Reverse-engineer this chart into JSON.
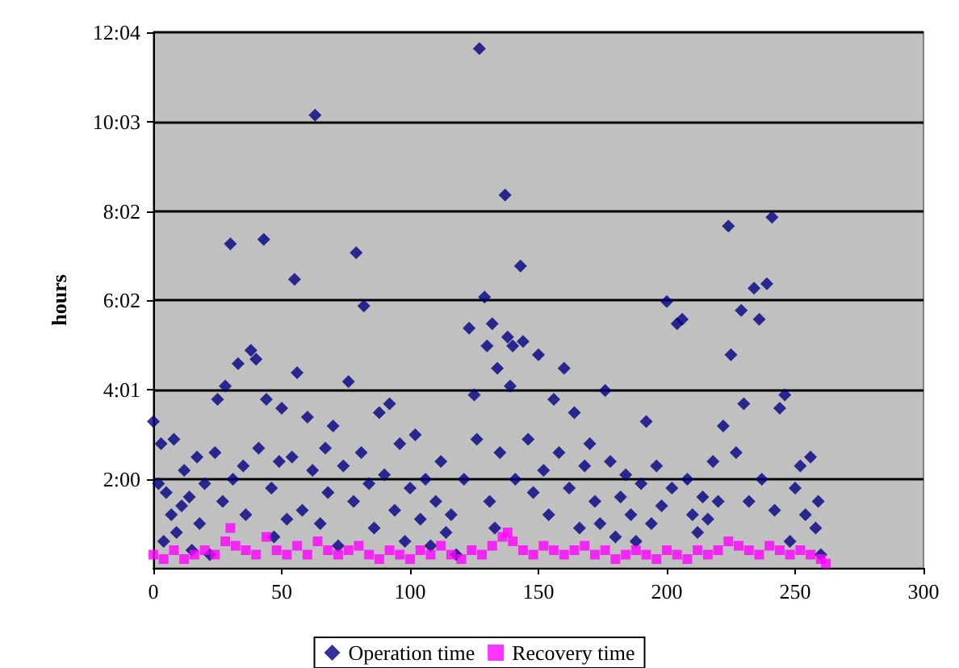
{
  "chart_data": {
    "type": "scatter",
    "ylabel": "hours",
    "xlim": [
      0,
      300
    ],
    "xticks": [
      0,
      50,
      100,
      150,
      200,
      250,
      300
    ],
    "ylim": [
      0,
      12.0667
    ],
    "yticks": [
      {
        "value": 2,
        "label": "2:00"
      },
      {
        "value": 4.0167,
        "label": "4:01"
      },
      {
        "value": 6.0333,
        "label": "6:02"
      },
      {
        "value": 8.0333,
        "label": "8:02"
      },
      {
        "value": 10.05,
        "label": "10:03"
      },
      {
        "value": 12.0667,
        "label": "12:04"
      }
    ],
    "grid": "y",
    "legend": "bottom",
    "series": [
      {
        "name": "Operation time",
        "color": "#000080",
        "marker": "diamond",
        "x": [
          0,
          2,
          3,
          4,
          5,
          7,
          8,
          9,
          11,
          12,
          14,
          15,
          17,
          18,
          20,
          22,
          24,
          25,
          27,
          28,
          30,
          31,
          33,
          35,
          36,
          38,
          40,
          41,
          43,
          44,
          46,
          47,
          49,
          50,
          52,
          54,
          55,
          56,
          58,
          60,
          62,
          63,
          65,
          67,
          68,
          70,
          72,
          74,
          76,
          78,
          79,
          81,
          82,
          84,
          86,
          88,
          90,
          92,
          94,
          96,
          98,
          100,
          102,
          104,
          106,
          108,
          110,
          112,
          114,
          116,
          118,
          121,
          123,
          125,
          126,
          127,
          129,
          130,
          131,
          132,
          133,
          134,
          135,
          137,
          138,
          139,
          140,
          141,
          143,
          144,
          146,
          148,
          150,
          152,
          154,
          156,
          158,
          160,
          162,
          164,
          166,
          168,
          170,
          172,
          174,
          176,
          178,
          180,
          182,
          184,
          186,
          188,
          190,
          192,
          194,
          196,
          198,
          200,
          202,
          204,
          206,
          208,
          210,
          212,
          214,
          216,
          218,
          220,
          222,
          224,
          225,
          227,
          229,
          230,
          232,
          234,
          236,
          237,
          239,
          241,
          242,
          244,
          246,
          248,
          250,
          252,
          254,
          256,
          258,
          259,
          260
        ],
        "values": [
          3.3,
          1.9,
          2.8,
          0.6,
          1.7,
          1.2,
          2.9,
          0.8,
          1.4,
          2.2,
          1.6,
          0.4,
          2.5,
          1.0,
          1.9,
          0.3,
          2.6,
          3.8,
          1.5,
          4.1,
          7.3,
          2.0,
          4.6,
          2.3,
          1.2,
          4.9,
          4.7,
          2.7,
          7.4,
          3.8,
          1.8,
          0.7,
          2.4,
          3.6,
          1.1,
          2.5,
          6.5,
          4.4,
          1.3,
          3.4,
          2.2,
          10.2,
          1.0,
          2.7,
          1.7,
          3.2,
          0.5,
          2.3,
          4.2,
          1.5,
          7.1,
          2.6,
          5.9,
          1.9,
          0.9,
          3.5,
          2.1,
          3.7,
          1.3,
          2.8,
          0.6,
          1.8,
          3.0,
          1.1,
          2.0,
          0.5,
          1.5,
          2.4,
          0.8,
          1.2,
          0.3,
          2.0,
          5.4,
          3.9,
          2.9,
          11.7,
          6.1,
          5.0,
          1.5,
          5.5,
          0.9,
          4.5,
          2.6,
          8.4,
          5.2,
          4.1,
          5.0,
          2.0,
          6.8,
          5.1,
          2.9,
          1.7,
          4.8,
          2.2,
          1.2,
          3.8,
          2.6,
          4.5,
          1.8,
          3.5,
          0.9,
          2.3,
          2.8,
          1.5,
          1.0,
          4.0,
          2.4,
          0.7,
          1.6,
          2.1,
          1.2,
          0.6,
          1.9,
          3.3,
          1.0,
          2.3,
          1.4,
          6.0,
          1.8,
          5.5,
          5.6,
          2.0,
          1.2,
          0.8,
          1.6,
          1.1,
          2.4,
          1.5,
          3.2,
          7.7,
          4.8,
          2.6,
          5.8,
          3.7,
          1.5,
          6.3,
          5.6,
          2.0,
          6.4,
          7.9,
          1.3,
          3.6,
          3.9,
          0.6,
          1.8,
          2.3,
          1.2,
          2.5,
          0.9,
          1.5,
          0.3
        ]
      },
      {
        "name": "Recovery time",
        "color": "#ff00ff",
        "marker": "square",
        "x": [
          0,
          4,
          8,
          12,
          16,
          20,
          24,
          28,
          30,
          32,
          36,
          40,
          44,
          48,
          52,
          56,
          60,
          64,
          68,
          72,
          76,
          80,
          84,
          88,
          92,
          96,
          100,
          104,
          108,
          112,
          116,
          120,
          124,
          128,
          132,
          136,
          138,
          140,
          144,
          148,
          152,
          156,
          160,
          164,
          168,
          172,
          176,
          180,
          184,
          188,
          192,
          196,
          200,
          204,
          208,
          212,
          216,
          220,
          224,
          228,
          232,
          236,
          240,
          244,
          248,
          252,
          256,
          260,
          262
        ],
        "values": [
          0.3,
          0.2,
          0.4,
          0.2,
          0.3,
          0.4,
          0.3,
          0.6,
          0.9,
          0.5,
          0.4,
          0.3,
          0.7,
          0.4,
          0.3,
          0.5,
          0.3,
          0.6,
          0.4,
          0.3,
          0.4,
          0.5,
          0.3,
          0.2,
          0.4,
          0.3,
          0.2,
          0.4,
          0.3,
          0.5,
          0.3,
          0.2,
          0.4,
          0.3,
          0.5,
          0.7,
          0.8,
          0.6,
          0.4,
          0.3,
          0.5,
          0.4,
          0.3,
          0.4,
          0.5,
          0.3,
          0.4,
          0.2,
          0.3,
          0.4,
          0.3,
          0.2,
          0.4,
          0.3,
          0.2,
          0.4,
          0.3,
          0.4,
          0.6,
          0.5,
          0.4,
          0.3,
          0.5,
          0.4,
          0.3,
          0.4,
          0.3,
          0.2,
          0.1
        ]
      }
    ]
  }
}
